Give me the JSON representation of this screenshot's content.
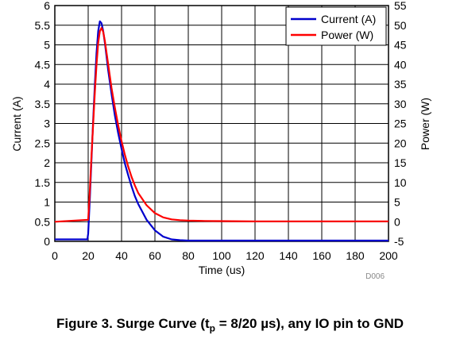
{
  "chart_data": {
    "type": "line",
    "xlabel": "Time (us)",
    "ylabel": "Current (A)",
    "y2label": "Power (W)",
    "xlim": [
      0,
      200
    ],
    "ylim": [
      0,
      6
    ],
    "y2lim": [
      -5,
      55
    ],
    "x_ticks": [
      "0",
      "20",
      "40",
      "60",
      "80",
      "100",
      "120",
      "140",
      "160",
      "180",
      "200"
    ],
    "y_ticks": [
      "0",
      "0.5",
      "1",
      "1.5",
      "2",
      "2.5",
      "3",
      "3.5",
      "4",
      "4.5",
      "5",
      "5.5",
      "6"
    ],
    "y2_ticks": [
      "-5",
      "0",
      "5",
      "10",
      "15",
      "20",
      "25",
      "30",
      "35",
      "40",
      "45",
      "50",
      "55"
    ],
    "grid": true,
    "legend_position": "top-right",
    "series": [
      {
        "name": "Current (A)",
        "axis": "left",
        "color": "#0000cc",
        "x": [
          0,
          19.5,
          20,
          21,
          22,
          23,
          24,
          25,
          26,
          27,
          28,
          29,
          30,
          31,
          32,
          34,
          36,
          38,
          40,
          42,
          44,
          46,
          48,
          50,
          55,
          60,
          65,
          70,
          75,
          80,
          90,
          100,
          120,
          140,
          160,
          180,
          200
        ],
        "y": [
          0.05,
          0.05,
          0.2,
          1.1,
          2.1,
          3.1,
          4.0,
          4.8,
          5.35,
          5.6,
          5.55,
          5.35,
          5.05,
          4.7,
          4.35,
          3.75,
          3.2,
          2.75,
          2.35,
          1.98,
          1.68,
          1.4,
          1.15,
          0.95,
          0.55,
          0.28,
          0.12,
          0.05,
          0.03,
          0.02,
          0.02,
          0.02,
          0.02,
          0.02,
          0.02,
          0.02,
          0.02
        ]
      },
      {
        "name": "Power (W)",
        "axis": "right",
        "color": "#ff0000",
        "x": [
          0,
          20,
          21,
          22,
          23,
          24,
          25,
          26,
          27,
          28,
          29,
          30,
          31,
          32,
          34,
          36,
          38,
          40,
          42,
          44,
          46,
          48,
          50,
          55,
          60,
          65,
          70,
          75,
          80,
          90,
          100,
          120,
          140,
          160,
          180,
          200
        ],
        "y": [
          0,
          0.5,
          8,
          17,
          25,
          33,
          40,
          45.5,
          48.5,
          49.3,
          48.3,
          46,
          43,
          40,
          34,
          29,
          24.5,
          20.5,
          17,
          14,
          11.4,
          9.2,
          7.3,
          4.2,
          2.2,
          1.1,
          0.6,
          0.4,
          0.3,
          0.2,
          0.15,
          0.1,
          0.1,
          0.1,
          0.1,
          0.1
        ]
      }
    ]
  },
  "source_tag": "D006",
  "caption": {
    "prefix": "Figure 3. Surge Curve (t",
    "subscript": "p",
    "suffix": " = 8/20 µs), any IO pin to GND"
  }
}
